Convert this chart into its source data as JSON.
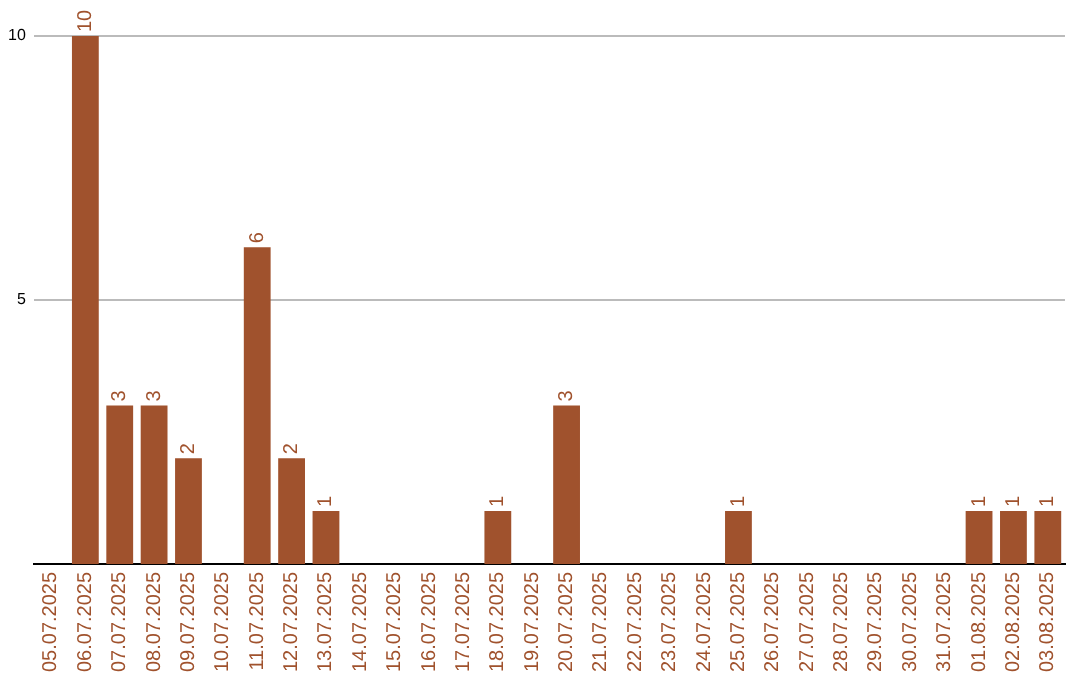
{
  "chart_data": {
    "type": "bar",
    "categories": [
      "05.07.2025",
      "06.07.2025",
      "07.07.2025",
      "08.07.2025",
      "09.07.2025",
      "10.07.2025",
      "11.07.2025",
      "12.07.2025",
      "13.07.2025",
      "14.07.2025",
      "15.07.2025",
      "16.07.2025",
      "17.07.2025",
      "18.07.2025",
      "19.07.2025",
      "20.07.2025",
      "21.07.2025",
      "22.07.2025",
      "23.07.2025",
      "24.07.2025",
      "25.07.2025",
      "26.07.2025",
      "27.07.2025",
      "28.07.2025",
      "29.07.2025",
      "30.07.2025",
      "31.07.2025",
      "01.08.2025",
      "02.08.2025",
      "03.08.2025"
    ],
    "values": [
      0,
      10,
      3,
      3,
      2,
      0,
      6,
      2,
      1,
      0,
      0,
      0,
      0,
      1,
      0,
      3,
      0,
      0,
      0,
      0,
      1,
      0,
      0,
      0,
      0,
      0,
      0,
      1,
      1,
      1
    ],
    "value_labels": [
      null,
      "10",
      "3",
      "3",
      "2",
      null,
      "6",
      "2",
      "1",
      null,
      null,
      null,
      null,
      "1",
      null,
      "3",
      null,
      null,
      null,
      null,
      "1",
      null,
      null,
      null,
      null,
      null,
      null,
      "1",
      "1",
      "1"
    ],
    "color": "#a0522d",
    "ylim": [
      0,
      10
    ],
    "yticks": [
      5,
      10
    ],
    "grid": "y",
    "legend": false
  }
}
